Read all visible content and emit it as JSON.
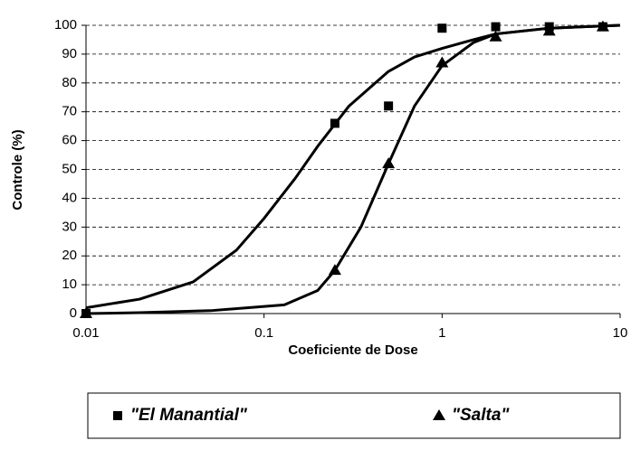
{
  "chart_data": {
    "type": "scatter",
    "xlabel": "Coeficiente de Dose",
    "ylabel": "Controle (%)",
    "xscale": "log",
    "xlim": [
      0.01,
      10
    ],
    "xticks": [
      0.01,
      0.1,
      1,
      10
    ],
    "ylim": [
      0,
      100
    ],
    "yticks": [
      0,
      10,
      20,
      30,
      40,
      50,
      60,
      70,
      80,
      90,
      100
    ],
    "grid": true,
    "legend": "bottom",
    "series": [
      {
        "name": "\"El Manantial\"",
        "color": "#000000",
        "marker": "square",
        "x": [
          0.01,
          0.25,
          0.5,
          1,
          2,
          4,
          8
        ],
        "values": [
          0,
          66,
          72,
          99,
          99.5,
          99.5,
          99.5
        ],
        "fit_x": [
          0.01,
          0.02,
          0.04,
          0.07,
          0.1,
          0.15,
          0.2,
          0.3,
          0.5,
          0.7,
          1,
          1.5,
          2,
          4,
          10
        ],
        "fit": [
          2,
          5,
          11,
          22,
          33,
          47,
          58,
          72,
          84,
          89,
          92,
          95,
          97,
          99,
          100
        ]
      },
      {
        "name": "\"Salta\"",
        "color": "#000000",
        "marker": "triangle",
        "x": [
          0.01,
          0.25,
          0.5,
          1,
          2,
          4,
          8
        ],
        "values": [
          0,
          15,
          52,
          87,
          96,
          98,
          99.5
        ],
        "fit_x": [
          0.01,
          0.02,
          0.05,
          0.13,
          0.2,
          0.25,
          0.35,
          0.5,
          0.7,
          1,
          1.5,
          2,
          4,
          10
        ],
        "fit": [
          0,
          0.3,
          1,
          3,
          8,
          15,
          30,
          52,
          72,
          86,
          94,
          97,
          99,
          100
        ]
      }
    ]
  }
}
